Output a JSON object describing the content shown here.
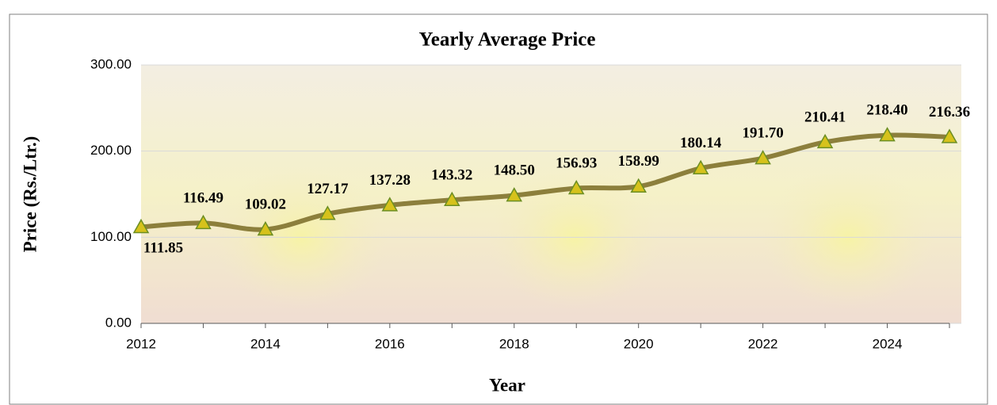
{
  "chart_data": {
    "type": "line",
    "title": "Yearly Average Price",
    "x_label": "Year",
    "y_label": "Price (Rs./Ltr.)",
    "x": [
      2012,
      2013,
      2014,
      2015,
      2016,
      2017,
      2018,
      2019,
      2020,
      2021,
      2022,
      2023,
      2024,
      2025
    ],
    "values": [
      111.85,
      116.49,
      109.02,
      127.17,
      137.28,
      143.32,
      148.5,
      156.93,
      158.99,
      180.14,
      191.7,
      210.41,
      218.4,
      216.36
    ],
    "value_labels": [
      "111.85",
      "116.49",
      "109.02",
      "127.17",
      "137.28",
      "143.32",
      "148.50",
      "156.93",
      "158.99",
      "180.14",
      "191.70",
      "210.41",
      "218.40",
      "216.36"
    ],
    "color": "#8c7f3c",
    "xlim": [
      2012,
      2025
    ],
    "xticks": [
      2012,
      2014,
      2016,
      2018,
      2020,
      2022,
      2024
    ],
    "ylim": [
      0,
      300
    ],
    "yticks": [
      {
        "value": 0,
        "label": "0.00"
      },
      {
        "value": 100,
        "label": "100.00"
      },
      {
        "value": 200,
        "label": "200.00"
      },
      {
        "value": 300,
        "label": "300.00"
      }
    ],
    "grid": true
  }
}
